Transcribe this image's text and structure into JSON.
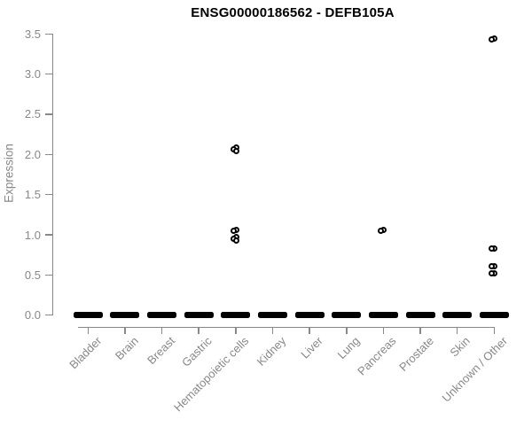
{
  "title": "ENSG00000186562 - DEFB105A",
  "colors": {
    "marker": "#000000",
    "zero_band": "#000000",
    "axis": "#888888",
    "axis_text": "#888888",
    "title_text": "#000000",
    "background": "#ffffff"
  },
  "chart_data": {
    "type": "scatter",
    "title": "ENSG00000186562 - DEFB105A",
    "xlabel": "",
    "ylabel": "Expression",
    "ylim": [
      0.0,
      3.5
    ],
    "ytick_labels": [
      "0.0",
      "0.5",
      "1.0",
      "1.5",
      "2.0",
      "2.5",
      "3.0",
      "3.5"
    ],
    "ytick_values": [
      0.0,
      0.5,
      1.0,
      1.5,
      2.0,
      2.5,
      3.0,
      3.5
    ],
    "grid": false,
    "legend": null,
    "categories": [
      "Bladder",
      "Brain",
      "Breast",
      "Gastric",
      "Hematopoietic cells",
      "Kidney",
      "Liver",
      "Lung",
      "Pancreas",
      "Prostate",
      "Skin",
      "Unknown / Other"
    ],
    "zero_band": {
      "note": "every category shows a dense horizontal dash of samples at expression 0.0",
      "value": 0.0,
      "categories": [
        "Bladder",
        "Brain",
        "Breast",
        "Gastric",
        "Hematopoietic cells",
        "Kidney",
        "Liver",
        "Lung",
        "Pancreas",
        "Prostate",
        "Skin",
        "Unknown / Other"
      ]
    },
    "points": [
      {
        "category": "Hematopoietic cells",
        "value": 2.09,
        "dx": 0.5
      },
      {
        "category": "Hematopoietic cells",
        "value": 2.06,
        "dx": -2.5
      },
      {
        "category": "Hematopoietic cells",
        "value": 2.04,
        "dx": 0.5
      },
      {
        "category": "Hematopoietic cells",
        "value": 1.06,
        "dx": 0.3
      },
      {
        "category": "Hematopoietic cells",
        "value": 1.05,
        "dx": -2.4
      },
      {
        "category": "Hematopoietic cells",
        "value": 0.97,
        "dx": 0.2
      },
      {
        "category": "Hematopoietic cells",
        "value": 0.95,
        "dx": -2.6
      },
      {
        "category": "Hematopoietic cells",
        "value": 0.93,
        "dx": 0.2
      },
      {
        "category": "Pancreas",
        "value": 1.06,
        "dx": 0.5
      },
      {
        "category": "Pancreas",
        "value": 1.05,
        "dx": -2.7
      },
      {
        "category": "Unknown / Other",
        "value": 3.44,
        "dx": 0.5
      },
      {
        "category": "Unknown / Other",
        "value": 3.43,
        "dx": -2.5
      },
      {
        "category": "Unknown / Other",
        "value": 0.83,
        "dx": 0.3
      },
      {
        "category": "Unknown / Other",
        "value": 0.83,
        "dx": -2.7
      },
      {
        "category": "Unknown / Other",
        "value": 0.61,
        "dx": 0.3
      },
      {
        "category": "Unknown / Other",
        "value": 0.61,
        "dx": -2.7
      },
      {
        "category": "Unknown / Other",
        "value": 0.52,
        "dx": 0.3
      },
      {
        "category": "Unknown / Other",
        "value": 0.52,
        "dx": -2.7
      }
    ]
  }
}
